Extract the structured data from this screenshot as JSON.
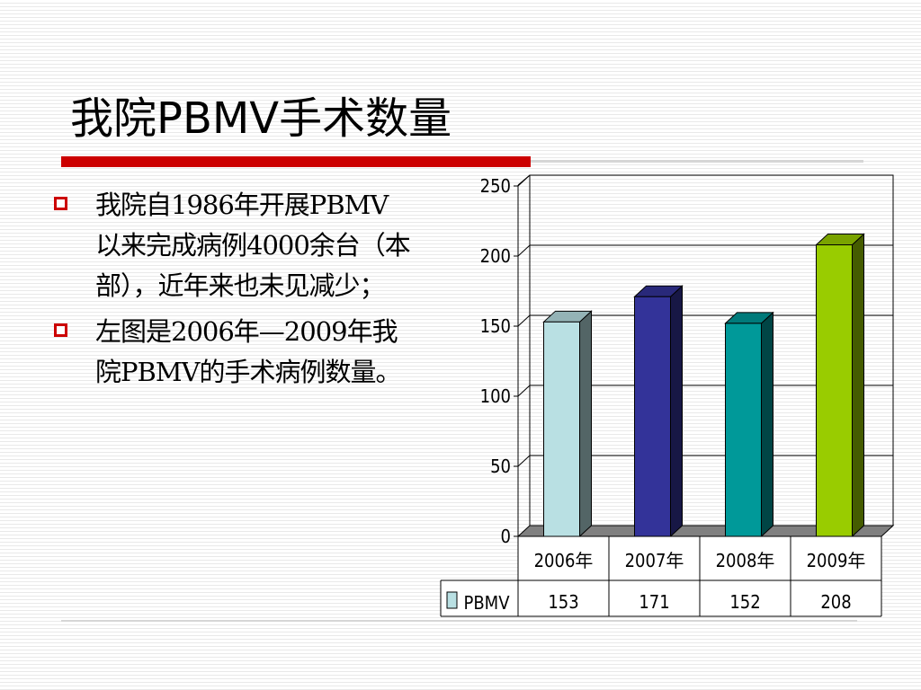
{
  "title": "我院PBMV手术数量",
  "bullets": [
    "我院自1986年开展PBMV以来完成病例4000余台（本部），近年来也未见减少；",
    "左图是2006年—2009年我院PBMV的手术病例数量。"
  ],
  "colors": {
    "title_rule": "#cc0000",
    "bullet_square": "#cc0000",
    "bars": [
      "#b9e0e3",
      "#333399",
      "#009999",
      "#99cc00"
    ]
  },
  "chart_data": {
    "type": "bar",
    "categories": [
      "2006年",
      "2007年",
      "2008年",
      "2009年"
    ],
    "series": [
      {
        "name": "PBMV",
        "values": [
          153,
          171,
          152,
          208
        ]
      }
    ],
    "y_ticks": [
      "0",
      "50",
      "100",
      "150",
      "200",
      "250"
    ],
    "ylim": [
      0,
      250
    ],
    "grid": true,
    "legend": "data-table",
    "data_table": true
  }
}
